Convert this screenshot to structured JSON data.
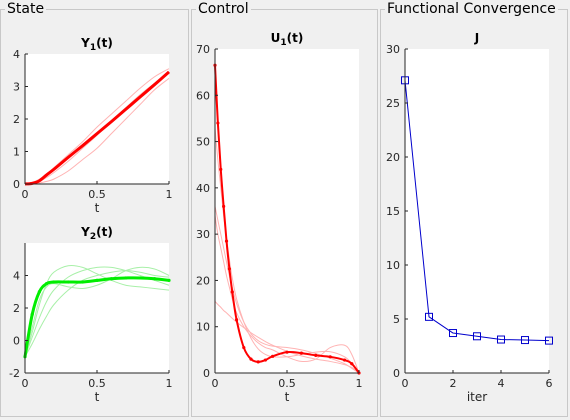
{
  "panels": {
    "state": "State",
    "control": "Control",
    "convergence": "Functional Convergence"
  },
  "colors": {
    "state_y1": "#ff0000",
    "state_y1_faded": "#ffb3b3",
    "state_y2": "#00ee00",
    "state_y2_faded": "#a8f0a8",
    "control": "#ff0000",
    "control_faded": "#ffb3b3",
    "convergence": "#0000cc"
  },
  "chart_data": [
    {
      "id": "y1",
      "type": "line",
      "title": "Y",
      "title_sub": "1",
      "title_suffix": "(t)",
      "xlabel": "t",
      "xlim": [
        0,
        1
      ],
      "ylim": [
        0,
        4
      ],
      "xticks": [
        0,
        0.5,
        1
      ],
      "xticklabels": [
        "0",
        "0.5",
        "1"
      ],
      "yticks": [
        0,
        1,
        2,
        3,
        4
      ],
      "yticklabels": [
        "0",
        "1",
        "2",
        "3",
        "4"
      ],
      "x": [
        0,
        0.05,
        0.1,
        0.15,
        0.2,
        0.3,
        0.4,
        0.5,
        0.6,
        0.7,
        0.8,
        0.9,
        1.0
      ],
      "faded_series": [
        [
          0,
          0.05,
          0.15,
          0.3,
          0.5,
          0.9,
          1.3,
          1.75,
          2.15,
          2.55,
          2.95,
          3.3,
          3.55
        ],
        [
          0,
          0.02,
          0.08,
          0.2,
          0.35,
          0.7,
          1.1,
          1.5,
          1.95,
          2.35,
          2.75,
          3.1,
          3.4
        ],
        [
          0,
          0.0,
          0.03,
          0.08,
          0.15,
          0.4,
          0.75,
          1.1,
          1.55,
          2.0,
          2.45,
          2.9,
          3.25
        ]
      ],
      "series": [
        {
          "values": [
            0,
            0.02,
            0.1,
            0.28,
            0.45,
            0.82,
            1.18,
            1.55,
            1.92,
            2.3,
            2.68,
            3.06,
            3.45
          ]
        }
      ]
    },
    {
      "id": "y2",
      "type": "line",
      "title": "Y",
      "title_sub": "2",
      "title_suffix": "(t)",
      "xlabel": "t",
      "xlim": [
        0,
        1
      ],
      "ylim": [
        -2,
        6
      ],
      "xticks": [
        0,
        0.5,
        1
      ],
      "xticklabels": [
        "0",
        "0.5",
        "1"
      ],
      "yticks": [
        -2,
        0,
        2,
        4
      ],
      "yticklabels": [
        "-2",
        "0",
        "2",
        "4"
      ],
      "x": [
        0,
        0.05,
        0.1,
        0.15,
        0.2,
        0.3,
        0.4,
        0.5,
        0.6,
        0.7,
        0.8,
        0.9,
        1.0
      ],
      "faded_series": [
        [
          -1.0,
          0.5,
          2.2,
          3.5,
          4.2,
          4.6,
          4.5,
          4.1,
          3.7,
          3.4,
          3.3,
          3.2,
          3.1
        ],
        [
          -1.0,
          0.2,
          1.4,
          2.4,
          3.1,
          3.9,
          4.3,
          4.5,
          4.5,
          4.3,
          4.0,
          3.7,
          3.4
        ],
        [
          -1.0,
          -0.2,
          0.7,
          1.5,
          2.2,
          3.1,
          3.7,
          4.0,
          4.2,
          4.3,
          4.2,
          4.0,
          3.9
        ],
        [
          -1.0,
          0.8,
          2.5,
          3.3,
          3.5,
          3.3,
          3.2,
          3.4,
          3.8,
          4.3,
          4.5,
          4.4,
          4.0
        ]
      ],
      "series": [
        {
          "values": [
            -1.0,
            1.6,
            3.0,
            3.5,
            3.6,
            3.6,
            3.6,
            3.7,
            3.8,
            3.85,
            3.85,
            3.8,
            3.7
          ]
        }
      ]
    },
    {
      "id": "u1",
      "type": "line",
      "title": "U",
      "title_sub": "1",
      "title_suffix": "(t)",
      "xlabel": "t",
      "xlim": [
        0,
        1
      ],
      "ylim": [
        0,
        70
      ],
      "xticks": [
        0,
        0.5,
        1
      ],
      "xticklabels": [
        "0",
        "0.5",
        "1"
      ],
      "yticks": [
        0,
        10,
        20,
        30,
        40,
        50,
        60,
        70
      ],
      "yticklabels": [
        "0",
        "10",
        "20",
        "30",
        "40",
        "50",
        "60",
        "70"
      ],
      "x": [
        0,
        0.02,
        0.04,
        0.06,
        0.08,
        0.1,
        0.12,
        0.15,
        0.2,
        0.25,
        0.3,
        0.35,
        0.4,
        0.5,
        0.6,
        0.7,
        0.8,
        0.9,
        0.95,
        1.0
      ],
      "faded_series": [
        [
          15.5,
          14.8,
          14.2,
          13.5,
          13.0,
          12.4,
          11.8,
          11.0,
          9.8,
          8.7,
          7.7,
          6.8,
          6.0,
          4.7,
          3.7,
          3.0,
          2.5,
          1.8,
          1.2,
          0
        ],
        [
          36,
          33,
          30,
          27,
          24,
          21,
          18.5,
          15,
          11,
          8.5,
          7,
          6.2,
          5.8,
          5.5,
          5.0,
          4.2,
          3.2,
          2.0,
          1.0,
          0
        ],
        [
          53,
          46,
          40,
          34,
          29,
          24.5,
          20.5,
          16,
          11,
          7.5,
          5.2,
          4.0,
          3.5,
          3.5,
          4.0,
          4.5,
          4.6,
          3.5,
          2.0,
          0
        ],
        [
          34,
          30,
          27,
          24,
          21,
          18.5,
          16,
          13,
          10,
          8,
          6.5,
          5.5,
          5.0,
          3.5,
          2.5,
          3.0,
          5.5,
          6.0,
          4.0,
          0
        ]
      ],
      "series": [
        {
          "values": [
            66.5,
            54,
            44,
            36,
            28.5,
            22.5,
            17.5,
            11.5,
            5.5,
            3.0,
            2.4,
            2.8,
            3.6,
            4.5,
            4.3,
            3.8,
            3.5,
            2.8,
            2.0,
            0
          ]
        }
      ]
    },
    {
      "id": "j",
      "type": "line",
      "title": "J",
      "xlabel": "iter",
      "xlim": [
        0,
        6
      ],
      "ylim": [
        0,
        30
      ],
      "xticks": [
        0,
        2,
        4,
        6
      ],
      "xticklabels": [
        "0",
        "2",
        "4",
        "6"
      ],
      "yticks": [
        0,
        5,
        10,
        15,
        20,
        25,
        30
      ],
      "yticklabels": [
        "0",
        "5",
        "10",
        "15",
        "20",
        "25",
        "30"
      ],
      "x": [
        0,
        1,
        2,
        3,
        4,
        5,
        6
      ],
      "series": [
        {
          "values": [
            27.1,
            5.2,
            3.7,
            3.4,
            3.1,
            3.05,
            3.0
          ]
        }
      ]
    }
  ]
}
